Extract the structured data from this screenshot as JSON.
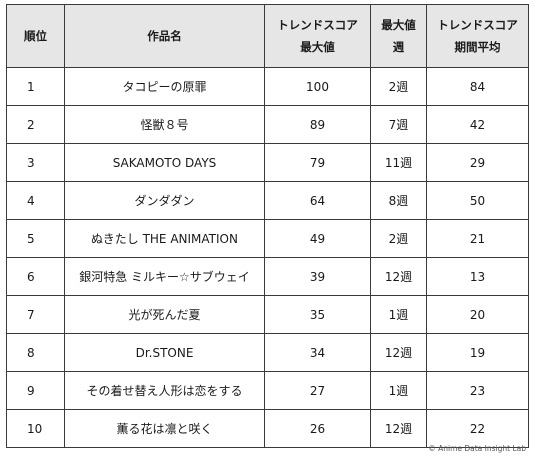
{
  "table": {
    "headers": {
      "rank": "順位",
      "title": "作品名",
      "max_score_line1": "トレンドスコア",
      "max_score_line2": "最大値",
      "max_week_line1": "最大値",
      "max_week_line2": "週",
      "avg_score_line1": "トレンドスコア",
      "avg_score_line2": "期間平均"
    },
    "rows": [
      {
        "rank": "1",
        "title": "タコピーの原罪",
        "max_score": "100",
        "max_week": "2週",
        "avg_score": "84"
      },
      {
        "rank": "2",
        "title": "怪獣８号",
        "max_score": "89",
        "max_week": "7週",
        "avg_score": "42"
      },
      {
        "rank": "3",
        "title": "SAKAMOTO DAYS",
        "max_score": "79",
        "max_week": "11週",
        "avg_score": "29"
      },
      {
        "rank": "4",
        "title": "ダンダダン",
        "max_score": "64",
        "max_week": "8週",
        "avg_score": "50"
      },
      {
        "rank": "5",
        "title": "ぬきたし THE ANIMATION",
        "max_score": "49",
        "max_week": "2週",
        "avg_score": "21"
      },
      {
        "rank": "6",
        "title": "銀河特急 ミルキー☆サブウェイ",
        "max_score": "39",
        "max_week": "12週",
        "avg_score": "13"
      },
      {
        "rank": "7",
        "title": "光が死んだ夏",
        "max_score": "35",
        "max_week": "1週",
        "avg_score": "20"
      },
      {
        "rank": "8",
        "title": "Dr.STONE",
        "max_score": "34",
        "max_week": "12週",
        "avg_score": "19"
      },
      {
        "rank": "9",
        "title": "その着せ替え人形は恋をする",
        "max_score": "27",
        "max_week": "1週",
        "avg_score": "23"
      },
      {
        "rank": "10",
        "title": "薫る花は凛と咲く",
        "max_score": "26",
        "max_week": "12週",
        "avg_score": "22"
      }
    ]
  },
  "footer": {
    "copyright": "© Anime Data Insight Lab"
  },
  "colors": {
    "header_background": "#e6e6e6",
    "border": "#3a3a3a"
  }
}
